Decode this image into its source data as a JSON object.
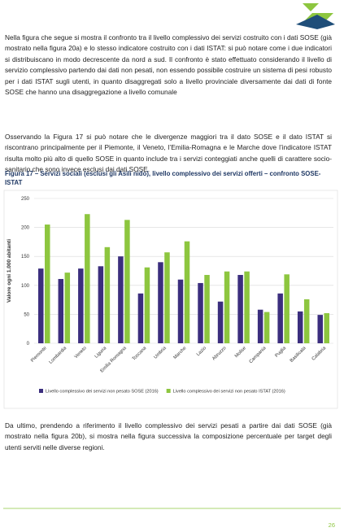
{
  "paragraphs": [
    "Nella figura che segue si mostra il confronto tra il livello complessivo dei servizi costruito con i dati SOSE (già mostrato nella figura 20a) e lo stesso indicatore costruito con i dati ISTAT:  si può notare come i due indicatori si distribuiscano in modo decrescente da nord a sud. Il confronto è stato effettuato considerando il livello di servizio complessivo partendo dai dati non pesati, non essendo possibile costruire un sistema di pesi robusto per i dati ISTAT sugli utenti, in quanto disaggregati solo a livello provinciale diversamente dai dati di fonte SOSE che hanno una disaggregazione a livello comunale",
    "Osservando la Figura 17 si può notare che le divergenze maggiori tra il dato SOSE e il dato ISTAT si riscontrano principalmente per il Piemonte, il Veneto, l’Emilia-Romagna e le Marche dove l’indicatore ISTAT risulta molto più alto di quello SOSE in quanto include tra i servizi conteggiati anche quelli di carattere socio-sanitario che sono invece esclusi dai dati SOSE.",
    "Da ultimo, prendendo a riferimento il livello complessivo dei servizi pesati a partire dai dati SOSE (già mostrato nella figura 20b), si mostra nella figura successiva la composizione percentuale per target degli utenti serviti nelle diverse regioni."
  ],
  "figure_caption": "Figura 17 – Servizi sociali (esclusi gli Asili nido), livello complessivo dei servizi offerti – confronto SOSE-ISTAT",
  "chart_data": {
    "type": "bar",
    "y_label": "Valore ogni 1.000 abitanti",
    "categories": [
      "Piemonte",
      "Lombardia",
      "Veneto",
      "Liguria",
      "Emilia Romagna",
      "Toscana",
      "Umbria",
      "Marche",
      "Lazio",
      "Abruzzo",
      "Molise",
      "Campania",
      "Puglia",
      "Basilicata",
      "Calabria"
    ],
    "series": [
      {
        "name": "Livello complessivo dei servizi non pesato SOSE (2016)",
        "color": "#3b2e7e",
        "values": [
          129,
          111,
          129,
          133,
          150,
          86,
          140,
          110,
          104,
          72,
          118,
          58,
          86,
          55,
          49
        ]
      },
      {
        "name": "Livello complessivo dei servizi non pesato ISTAT (2016)",
        "color": "#8dc63f",
        "values": [
          205,
          122,
          223,
          166,
          213,
          131,
          157,
          176,
          118,
          124,
          124,
          54,
          119,
          76,
          52
        ]
      }
    ],
    "ylim": [
      0,
      250
    ],
    "yticks": [
      0,
      50,
      100,
      150,
      200,
      250
    ],
    "grid": true,
    "legend": "bottom"
  },
  "page_number": "26"
}
